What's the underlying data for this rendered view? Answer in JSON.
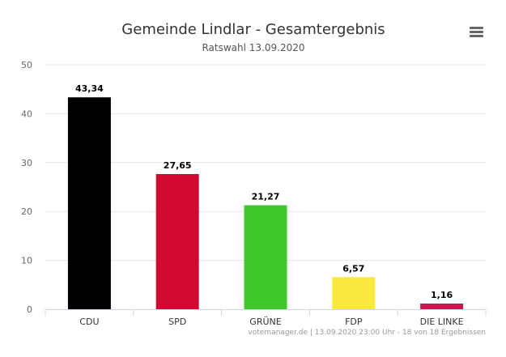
{
  "chart_data": {
    "type": "bar",
    "title": "Gemeinde Lindlar - Gesamtergebnis",
    "subtitle": "Ratswahl 13.09.2020",
    "categories": [
      "CDU",
      "SPD",
      "GRÜNE",
      "FDP",
      "DIE LINKE"
    ],
    "values": [
      43.34,
      27.65,
      21.27,
      6.57,
      1.16
    ],
    "data_labels": [
      "43,34",
      "27,65",
      "21,27",
      "6,57",
      "1,16"
    ],
    "colors": [
      "#000000",
      "#d20a32",
      "#3ec82c",
      "#f8e840",
      "#c8174f"
    ],
    "ylim": [
      0,
      50
    ],
    "yticks": [
      0,
      10,
      20,
      30,
      40,
      50
    ],
    "grid": true,
    "xlabel": "",
    "ylabel": ""
  },
  "credits": "votemanager.de | 13.09.2020 23:00 Uhr - 18 von 18 Ergebnissen",
  "menu_icon": "hamburger-menu-icon"
}
